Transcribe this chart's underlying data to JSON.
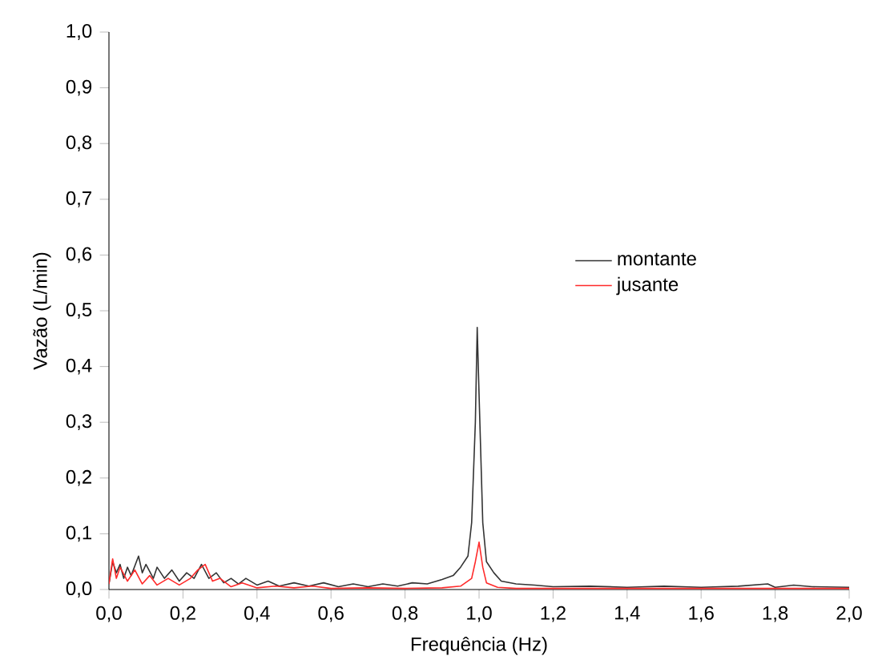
{
  "chart_data": {
    "type": "line",
    "xlabel": "Frequência (Hz)",
    "ylabel": "Vazão (L/min)",
    "xlim": [
      0,
      2
    ],
    "ylim": [
      0,
      1
    ],
    "xticks": [
      {
        "value": 0,
        "label": "0,0"
      },
      {
        "value": 0.2,
        "label": "0,2"
      },
      {
        "value": 0.4,
        "label": "0,4"
      },
      {
        "value": 0.6,
        "label": "0,6"
      },
      {
        "value": 0.8,
        "label": "0,8"
      },
      {
        "value": 1,
        "label": "1,0"
      },
      {
        "value": 1.2,
        "label": "1,2"
      },
      {
        "value": 1.4,
        "label": "1,4"
      },
      {
        "value": 1.6,
        "label": "1,6"
      },
      {
        "value": 1.8,
        "label": "1,8"
      },
      {
        "value": 2,
        "label": "2,0"
      }
    ],
    "yticks": [
      {
        "value": 0,
        "label": "0,0"
      },
      {
        "value": 0.1,
        "label": "0,1"
      },
      {
        "value": 0.2,
        "label": "0,2"
      },
      {
        "value": 0.3,
        "label": "0,3"
      },
      {
        "value": 0.4,
        "label": "0,4"
      },
      {
        "value": 0.5,
        "label": "0,5"
      },
      {
        "value": 0.6,
        "label": "0,6"
      },
      {
        "value": 0.7,
        "label": "0,7"
      },
      {
        "value": 0.8,
        "label": "0,8"
      },
      {
        "value": 0.9,
        "label": "0,9"
      },
      {
        "value": 1,
        "label": "1,0"
      }
    ],
    "legend": "right",
    "grid": false,
    "marker": "none",
    "line_style": "solid",
    "series": [
      {
        "name": "montante",
        "color": "#333333",
        "x": [
          0,
          0.01,
          0.02,
          0.03,
          0.04,
          0.05,
          0.06,
          0.08,
          0.09,
          0.1,
          0.12,
          0.13,
          0.15,
          0.17,
          0.19,
          0.21,
          0.23,
          0.25,
          0.27,
          0.29,
          0.31,
          0.33,
          0.35,
          0.37,
          0.4,
          0.43,
          0.46,
          0.5,
          0.54,
          0.58,
          0.62,
          0.66,
          0.7,
          0.74,
          0.78,
          0.82,
          0.86,
          0.9,
          0.93,
          0.95,
          0.97,
          0.98,
          0.99,
          0.995,
          1.0,
          1.01,
          1.02,
          1.04,
          1.06,
          1.1,
          1.15,
          1.2,
          1.3,
          1.4,
          1.5,
          1.6,
          1.7,
          1.78,
          1.8,
          1.85,
          1.9,
          2.0
        ],
        "values": [
          0.01,
          0.05,
          0.03,
          0.045,
          0.02,
          0.04,
          0.025,
          0.06,
          0.03,
          0.045,
          0.02,
          0.04,
          0.02,
          0.035,
          0.015,
          0.03,
          0.02,
          0.045,
          0.02,
          0.03,
          0.012,
          0.02,
          0.01,
          0.02,
          0.008,
          0.015,
          0.006,
          0.012,
          0.006,
          0.012,
          0.005,
          0.01,
          0.005,
          0.01,
          0.006,
          0.012,
          0.01,
          0.018,
          0.025,
          0.04,
          0.06,
          0.12,
          0.3,
          0.47,
          0.35,
          0.12,
          0.05,
          0.03,
          0.015,
          0.01,
          0.008,
          0.005,
          0.006,
          0.004,
          0.006,
          0.004,
          0.006,
          0.01,
          0.004,
          0.008,
          0.005,
          0.004
        ]
      },
      {
        "name": "jusante",
        "color": "#ff2a2a",
        "x": [
          0,
          0.01,
          0.02,
          0.03,
          0.05,
          0.07,
          0.09,
          0.11,
          0.13,
          0.16,
          0.19,
          0.22,
          0.24,
          0.26,
          0.28,
          0.3,
          0.33,
          0.36,
          0.4,
          0.45,
          0.5,
          0.55,
          0.6,
          0.7,
          0.8,
          0.9,
          0.95,
          0.98,
          0.99,
          1.0,
          1.01,
          1.02,
          1.05,
          1.1,
          1.5,
          2.0
        ],
        "values": [
          0.01,
          0.055,
          0.02,
          0.04,
          0.015,
          0.035,
          0.01,
          0.025,
          0.008,
          0.02,
          0.008,
          0.02,
          0.035,
          0.045,
          0.015,
          0.02,
          0.005,
          0.012,
          0.003,
          0.006,
          0.003,
          0.006,
          0.002,
          0.003,
          0.002,
          0.003,
          0.006,
          0.02,
          0.05,
          0.085,
          0.04,
          0.012,
          0.004,
          0.002,
          0.002,
          0.002
        ]
      }
    ]
  }
}
